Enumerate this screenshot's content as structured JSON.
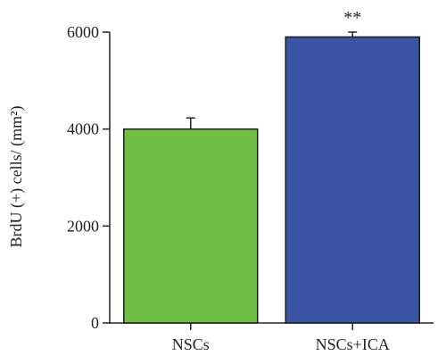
{
  "chart_data": {
    "type": "bar",
    "categories": [
      "NSCs",
      "NSCs+ICA"
    ],
    "values": [
      4000,
      5900
    ],
    "errors": [
      230,
      100
    ],
    "annotations": [
      "",
      "**"
    ],
    "ylabel": "BrdU (+) cells/ (mm²)",
    "yticks": [
      0,
      2000,
      4000,
      6000
    ],
    "ylim": [
      0,
      6000
    ],
    "grid": false,
    "bar_colors": [
      "#70bf44",
      "#3a54a4"
    ],
    "edge_color": "#1a1a1a"
  }
}
